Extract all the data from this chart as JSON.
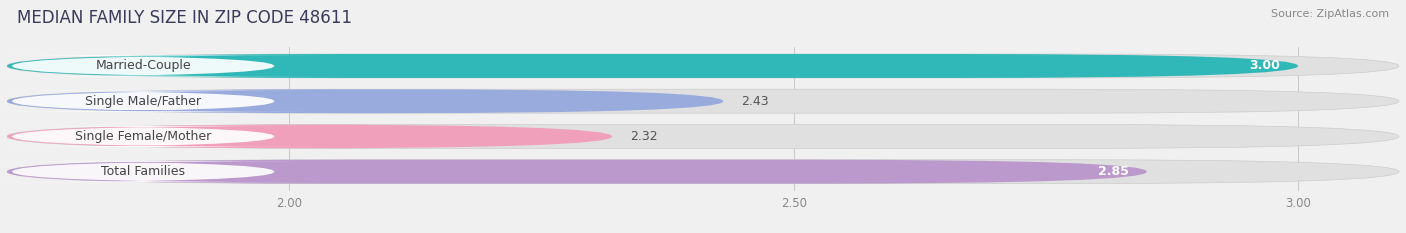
{
  "title": "MEDIAN FAMILY SIZE IN ZIP CODE 48611",
  "source": "Source: ZipAtlas.com",
  "categories": [
    "Married-Couple",
    "Single Male/Father",
    "Single Female/Mother",
    "Total Families"
  ],
  "values": [
    3.0,
    2.43,
    2.32,
    2.85
  ],
  "bar_colors": [
    "#30b8b8",
    "#99aadd",
    "#f0a0bb",
    "#bb99cc"
  ],
  "label_colors": [
    "#ffffff",
    "#555555",
    "#555555",
    "#ffffff"
  ],
  "xlim_left": 1.72,
  "xlim_right": 3.1,
  "xticks": [
    2.0,
    2.5,
    3.0
  ],
  "background_color": "#f0f0f0",
  "bar_bg_color": "#e0e0e0",
  "title_fontsize": 12,
  "source_fontsize": 8,
  "label_fontsize": 9,
  "value_fontsize": 9
}
